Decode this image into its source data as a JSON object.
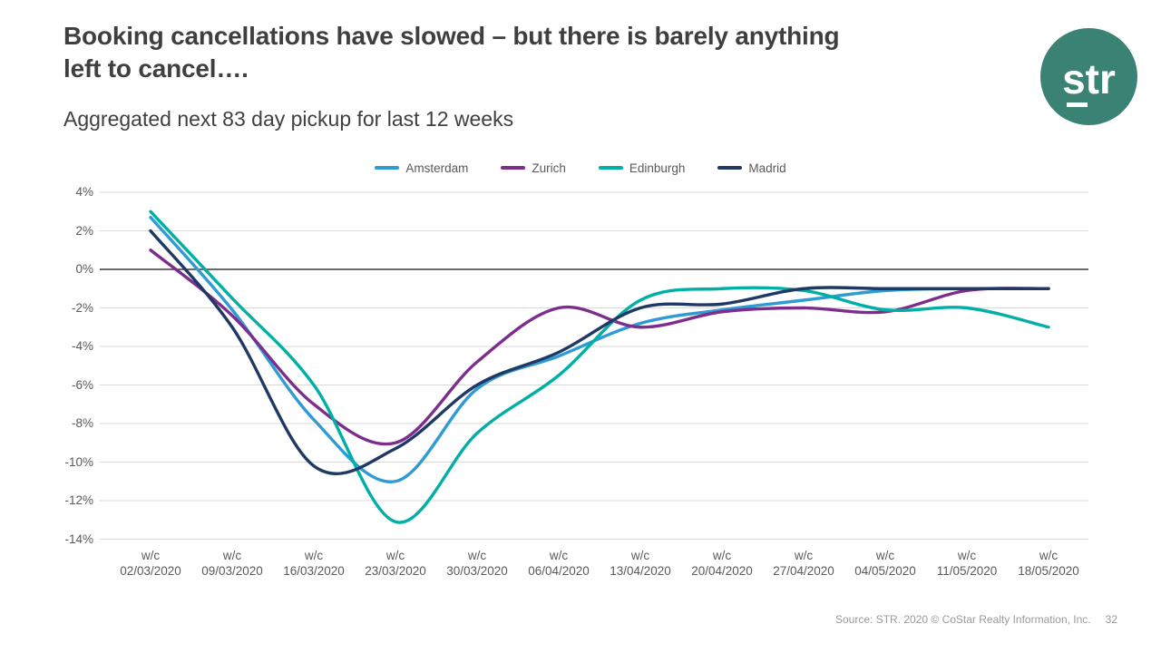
{
  "slide": {
    "title_line1": "Booking cancellations have slowed – but there is barely anything",
    "title_line2": "left to cancel….",
    "subtitle": "Aggregated next 83 day pickup for last 12 weeks",
    "logo_text": "str",
    "footer_source": "Source: STR. 2020 © CoStar Realty Information, Inc.",
    "page_number": "32"
  },
  "colors": {
    "logo_circle": "#398274",
    "title_text": "#3f3f3f",
    "axis_text": "#595959",
    "grid_line": "#d9d9d9",
    "zero_line": "#3a3a3a",
    "footer_text": "#9a9a9a"
  },
  "chart_data": {
    "type": "line",
    "smooth": true,
    "grid": true,
    "legend_position": "top-center",
    "x_tick_prefix": "w/c",
    "categories": [
      "02/03/2020",
      "09/03/2020",
      "16/03/2020",
      "23/03/2020",
      "30/03/2020",
      "06/04/2020",
      "13/04/2020",
      "20/04/2020",
      "27/04/2020",
      "04/05/2020",
      "11/05/2020",
      "18/05/2020"
    ],
    "ylim": [
      -14,
      4
    ],
    "y_tick_step": 2,
    "y_tick_suffix": "%",
    "xlabel": "",
    "ylabel": "",
    "series": [
      {
        "name": "Amsterdam",
        "color": "#2e9bd5",
        "values": [
          2.7,
          -2.1,
          -7.8,
          -11.0,
          -6.2,
          -4.5,
          -2.8,
          -2.1,
          -1.6,
          -1.1,
          -1.0,
          -1.0
        ]
      },
      {
        "name": "Zurich",
        "color": "#7d2d8c",
        "values": [
          1.0,
          -2.4,
          -7.0,
          -9.0,
          -4.8,
          -2.0,
          -3.0,
          -2.2,
          -2.0,
          -2.2,
          -1.1,
          -1.0
        ]
      },
      {
        "name": "Edinburgh",
        "color": "#00afa6",
        "values": [
          3.0,
          -1.5,
          -6.0,
          -13.1,
          -8.5,
          -5.5,
          -1.6,
          -1.0,
          -1.1,
          -2.1,
          -2.0,
          -3.0
        ]
      },
      {
        "name": "Madrid",
        "color": "#1f3864",
        "values": [
          2.0,
          -3.0,
          -10.2,
          -9.3,
          -6.0,
          -4.3,
          -2.0,
          -1.8,
          -1.0,
          -1.0,
          -1.0,
          -1.0
        ]
      }
    ]
  }
}
